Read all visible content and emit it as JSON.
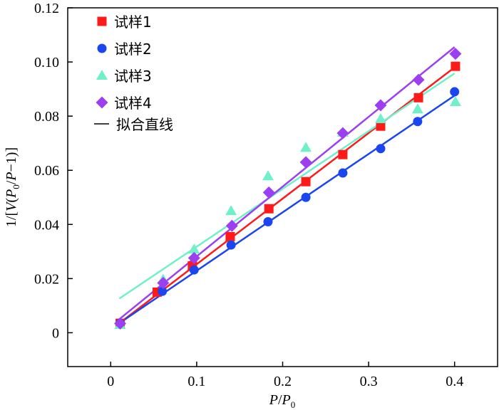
{
  "chart_data": {
    "type": "scatter",
    "title": "",
    "xlabel": "P/P0",
    "ylabel": "1/[V(P0/P−1)]",
    "xlim": [
      -0.05,
      0.45
    ],
    "ylim": [
      -0.0125,
      0.12
    ],
    "xticks": [
      "0",
      "0.1",
      "0.2",
      "0.3",
      "0.4"
    ],
    "xtick_values": [
      0,
      0.1,
      0.2,
      0.3,
      0.4
    ],
    "yticks": [
      "0",
      "0.02",
      "0.04",
      "0.06",
      "0.08",
      "0.10",
      "0.12"
    ],
    "ytick_values": [
      0,
      0.02,
      0.04,
      0.06,
      0.08,
      0.1,
      0.12
    ],
    "legend_position": "top-left",
    "fit_label": "拟合直线",
    "series": [
      {
        "name": "试样1",
        "color": "#ff1a1a",
        "marker": "square",
        "x": [
          0.011,
          0.054,
          0.095,
          0.139,
          0.184,
          0.227,
          0.27,
          0.314,
          0.358,
          0.401
        ],
        "y": [
          0.0035,
          0.015,
          0.0247,
          0.0355,
          0.0458,
          0.0558,
          0.0658,
          0.0763,
          0.0868,
          0.0984
        ],
        "fit": [
          [
            0.01,
            0.0035
          ],
          [
            0.4,
            0.098
          ]
        ]
      },
      {
        "name": "试样2",
        "color": "#1a45f0",
        "marker": "circle",
        "x": [
          0.011,
          0.06,
          0.097,
          0.14,
          0.183,
          0.227,
          0.27,
          0.314,
          0.357,
          0.4
        ],
        "y": [
          0.0035,
          0.0153,
          0.0232,
          0.0324,
          0.041,
          0.05,
          0.059,
          0.068,
          0.078,
          0.089
        ],
        "fit": [
          [
            0.01,
            0.0035
          ],
          [
            0.4,
            0.0876
          ]
        ]
      },
      {
        "name": "试样3",
        "color": "#6ff0c8",
        "marker": "triangle",
        "x": [
          0.011,
          0.061,
          0.097,
          0.14,
          0.183,
          0.227,
          0.27,
          0.314,
          0.357,
          0.401
        ],
        "y": [
          0.003,
          0.0197,
          0.0308,
          0.045,
          0.0579,
          0.0684,
          0.074,
          0.079,
          0.0826,
          0.0853
        ],
        "fit": [
          [
            0.01,
            0.0126
          ],
          [
            0.4,
            0.0958
          ]
        ]
      },
      {
        "name": "试样4",
        "color": "#9b3ff0",
        "marker": "diamond",
        "x": [
          0.011,
          0.061,
          0.097,
          0.141,
          0.184,
          0.227,
          0.27,
          0.314,
          0.358,
          0.401
        ],
        "y": [
          0.0034,
          0.0184,
          0.0276,
          0.0395,
          0.0518,
          0.063,
          0.0737,
          0.084,
          0.0934,
          0.103
        ],
        "fit": [
          [
            0.01,
            0.005
          ],
          [
            0.4,
            0.1055
          ]
        ]
      }
    ]
  }
}
